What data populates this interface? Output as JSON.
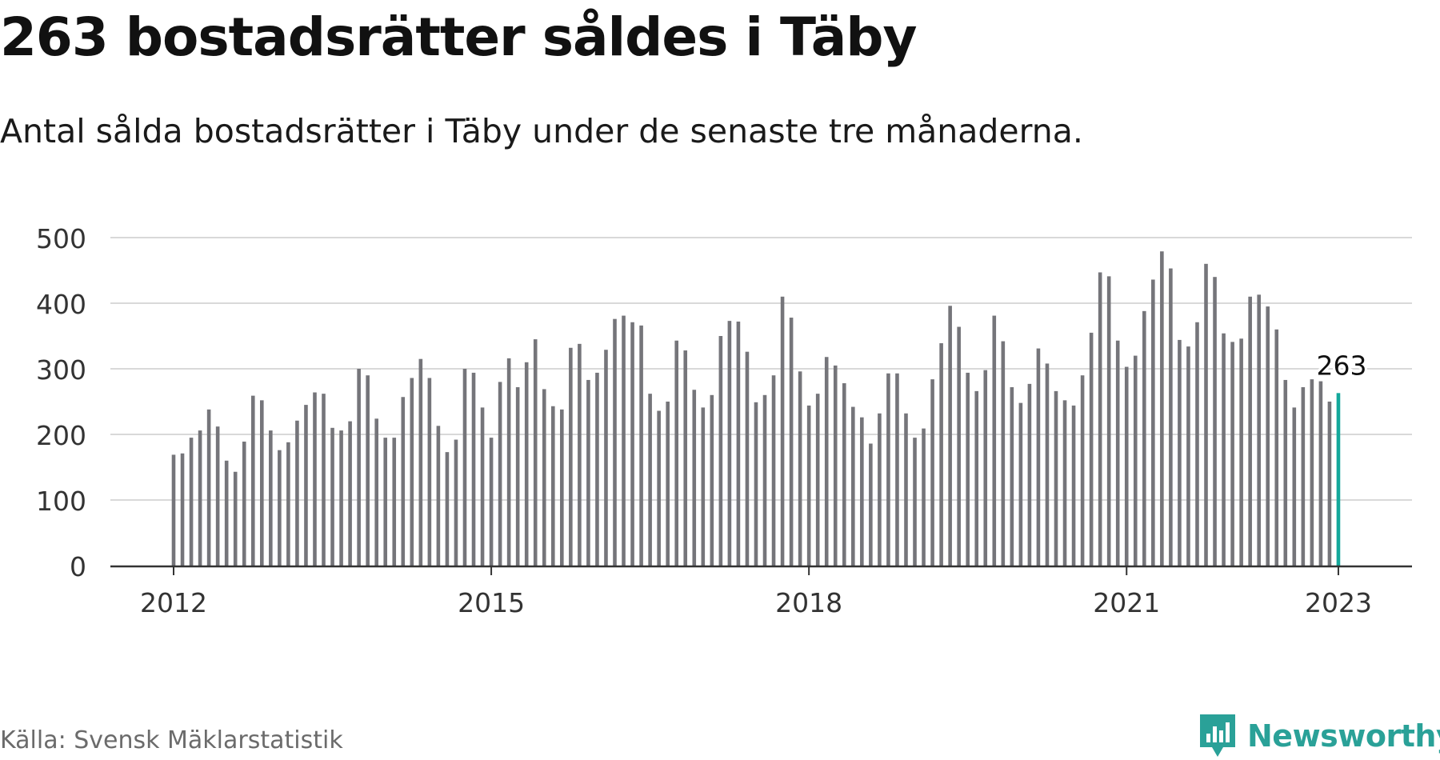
{
  "header": {
    "title": "263 bostadsrätter såldes i Täby",
    "subtitle": "Antal sålda bostadsrätter i Täby under de senaste tre månaderna."
  },
  "footer": {
    "source": "Källa: Svensk Mäklarstatistik",
    "brand": "Newsworthy"
  },
  "colors": {
    "bar": "#75757a",
    "highlight": "#14a89b",
    "grid": "#d9d9d9",
    "axis": "#333333",
    "brand": "#2aa198"
  },
  "chart_data": {
    "type": "bar",
    "title": "263 bostadsrätter såldes i Täby",
    "subtitle": "Antal sålda bostadsrätter i Täby under de senaste tre månaderna.",
    "xlabel": "",
    "ylabel": "",
    "ylim": [
      0,
      500
    ],
    "yticks": [
      0,
      100,
      200,
      300,
      400,
      500
    ],
    "grid": true,
    "legend": "none",
    "start_month": "2012-01",
    "x_tick_labels": [
      "2012",
      "2015",
      "2018",
      "2021",
      "2023"
    ],
    "x_tick_indices": [
      0,
      36,
      72,
      108,
      132
    ],
    "highlight_label": "263",
    "values": [
      169,
      171,
      195,
      206,
      238,
      212,
      160,
      143,
      189,
      259,
      252,
      206,
      176,
      188,
      221,
      245,
      264,
      262,
      210,
      206,
      220,
      300,
      290,
      224,
      195,
      195,
      257,
      286,
      315,
      286,
      213,
      173,
      192,
      300,
      294,
      241,
      195,
      280,
      316,
      272,
      310,
      345,
      269,
      243,
      238,
      332,
      338,
      283,
      294,
      329,
      376,
      381,
      371,
      366,
      262,
      236,
      250,
      343,
      328,
      268,
      241,
      260,
      350,
      373,
      372,
      326,
      249,
      260,
      290,
      410,
      378,
      296,
      244,
      262,
      318,
      305,
      278,
      242,
      226,
      186,
      232,
      293,
      293,
      232,
      195,
      209,
      284,
      339,
      396,
      364,
      294,
      266,
      298,
      381,
      342,
      272,
      248,
      277,
      331,
      308,
      266,
      252,
      244,
      290,
      355,
      447,
      441,
      343,
      303,
      320,
      388,
      436,
      479,
      453,
      344,
      334,
      371,
      460,
      440,
      354,
      341,
      346,
      410,
      413,
      395,
      360,
      283,
      241,
      272,
      284,
      281,
      250,
      263
    ]
  }
}
